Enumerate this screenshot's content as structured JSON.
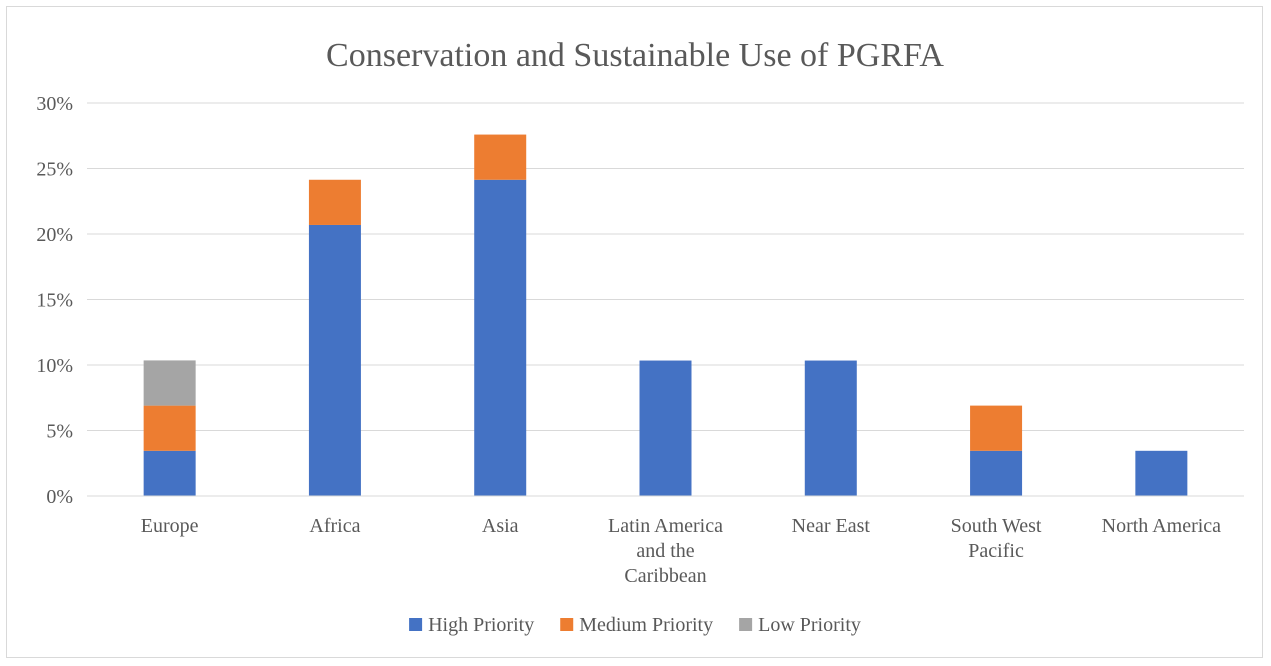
{
  "chart_data": {
    "type": "bar",
    "stacked": true,
    "title": "Conservation and Sustainable Use of PGRFA",
    "categories": [
      "Europe",
      "Africa",
      "Asia",
      "Latin America and the Caribbean",
      "Near East",
      "South West Pacific",
      "North America"
    ],
    "category_lines": [
      [
        "Europe"
      ],
      [
        "Africa"
      ],
      [
        "Asia"
      ],
      [
        "Latin America",
        "and the",
        "Caribbean"
      ],
      [
        "Near East"
      ],
      [
        "South West",
        "Pacific"
      ],
      [
        "North America"
      ]
    ],
    "series": [
      {
        "name": "High Priority",
        "color": "#4472c4",
        "values": [
          3.45,
          20.69,
          24.14,
          10.34,
          10.34,
          3.45,
          3.45
        ]
      },
      {
        "name": "Medium Priority",
        "color": "#ed7d31",
        "values": [
          3.45,
          3.45,
          3.45,
          0,
          0,
          3.45,
          0
        ]
      },
      {
        "name": "Low Priority",
        "color": "#a5a5a5",
        "values": [
          3.45,
          0,
          0,
          0,
          0,
          0,
          0
        ]
      }
    ],
    "ylim": [
      0,
      30
    ],
    "yticks": [
      0,
      5,
      10,
      15,
      20,
      25,
      30
    ],
    "ytick_labels": [
      "0%",
      "5%",
      "10%",
      "15%",
      "20%",
      "25%",
      "30%"
    ],
    "grid": true,
    "legend_position": "bottom"
  }
}
